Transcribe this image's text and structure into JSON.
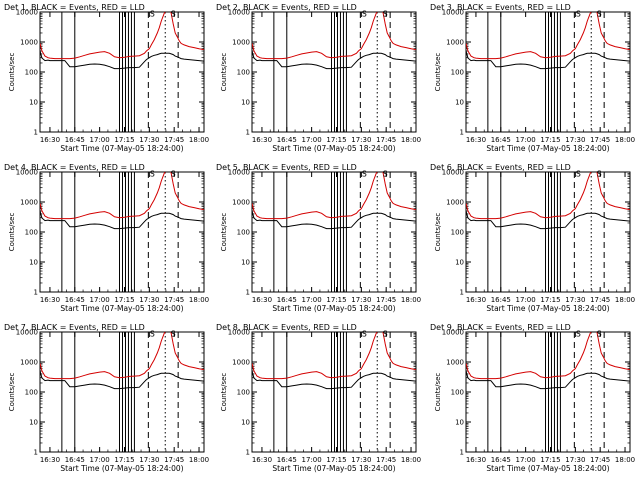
{
  "page": {
    "start_time_label": "Start Time (07-May-05 18:24:00)",
    "ylabel": "Counts/sec"
  },
  "colors": {
    "background": "#ffffff",
    "events": "#000000",
    "lld": "#d40000",
    "axes": "#000000"
  },
  "chart_data": [
    {
      "type": "line",
      "title": "Det 1, BLACK = Events, RED = LLD",
      "detector": 1
    },
    {
      "type": "line",
      "title": "Det 2, BLACK = Events, RED = LLD",
      "detector": 2
    },
    {
      "type": "line",
      "title": "Det 3, BLACK = Events, RED = LLD",
      "detector": 3
    },
    {
      "type": "line",
      "title": "Det 4, BLACK = Events, RED = LLD",
      "detector": 4
    },
    {
      "type": "line",
      "title": "Det 5, BLACK = Events, RED = LLD",
      "detector": 5
    },
    {
      "type": "line",
      "title": "Det 6, BLACK = Events, RED = LLD",
      "detector": 6
    },
    {
      "type": "line",
      "title": "Det 7, BLACK = Events, RED = LLD",
      "detector": 7
    },
    {
      "type": "line",
      "title": "Det 8, BLACK = Events, RED = LLD",
      "detector": 8
    },
    {
      "type": "line",
      "title": "Det 9, BLACK = Events, RED = LLD",
      "detector": 9
    }
  ],
  "shared": {
    "xlabel": "Start Time (07-May-05 18:24:00)",
    "ylabel": "Counts/sec",
    "xlim": [
      16.4,
      18.05
    ],
    "ylim": [
      1,
      10000
    ],
    "yscale": "log",
    "x_ticks": [
      16.5,
      16.75,
      17.0,
      17.25,
      17.5,
      17.75,
      18.0
    ],
    "x_tick_labels": [
      "16:30",
      "16:45",
      "17:00",
      "17:15",
      "17:30",
      "17:45",
      "18:00"
    ],
    "y_ticks": [
      1,
      10,
      100,
      1000,
      10000
    ],
    "y_tick_labels": [
      "1",
      "10",
      "100",
      "1000",
      "10000"
    ],
    "solid_markers": [
      16.62,
      16.75,
      17.2,
      17.23,
      17.26,
      17.29,
      17.32,
      17.35
    ],
    "dashed_markers": [
      17.49,
      17.79
    ],
    "dotted_markers": [
      17.66
    ],
    "annotations": [
      {
        "text": "S",
        "x": 17.53,
        "y": 9000
      },
      {
        "text": "S",
        "x": 17.74,
        "y": 9000
      }
    ],
    "series": [
      {
        "name": "LLD",
        "color": "red",
        "x": [
          16.4,
          16.42,
          16.45,
          16.48,
          16.5,
          16.55,
          16.6,
          16.65,
          16.7,
          16.75,
          16.8,
          16.85,
          16.9,
          16.95,
          17.0,
          17.05,
          17.1,
          17.15,
          17.2,
          17.25,
          17.3,
          17.35,
          17.4,
          17.45,
          17.47,
          17.5,
          17.52,
          17.55,
          17.58,
          17.6,
          17.62,
          17.65,
          17.68,
          17.7,
          17.72,
          17.74,
          17.76,
          17.78,
          17.8,
          17.82,
          17.85,
          17.9,
          17.95,
          18.0,
          18.05
        ],
        "values": [
          900,
          500,
          340,
          300,
          290,
          280,
          280,
          280,
          280,
          290,
          320,
          360,
          400,
          430,
          460,
          480,
          420,
          320,
          300,
          310,
          330,
          340,
          350,
          420,
          500,
          600,
          800,
          1200,
          2000,
          3000,
          5000,
          9000,
          13000,
          15000,
          9000,
          4000,
          2000,
          1500,
          1100,
          900,
          800,
          700,
          650,
          600,
          560
        ]
      },
      {
        "name": "Events",
        "color": "black",
        "x": [
          16.4,
          16.42,
          16.45,
          16.48,
          16.5,
          16.55,
          16.6,
          16.65,
          16.7,
          16.75,
          16.8,
          16.85,
          16.9,
          16.95,
          17.0,
          17.05,
          17.1,
          17.15,
          17.2,
          17.25,
          17.3,
          17.35,
          17.4,
          17.45,
          17.47,
          17.5,
          17.52,
          17.55,
          17.58,
          17.6,
          17.62,
          17.65,
          17.68,
          17.7,
          17.72,
          17.74,
          17.76,
          17.78,
          17.8,
          17.82,
          17.85,
          17.9,
          17.95,
          18.0,
          18.05
        ],
        "values": [
          500,
          290,
          240,
          250,
          240,
          240,
          240,
          240,
          150,
          150,
          160,
          170,
          180,
          185,
          180,
          170,
          150,
          130,
          130,
          135,
          140,
          140,
          145,
          220,
          260,
          300,
          330,
          360,
          380,
          400,
          420,
          420,
          420,
          420,
          400,
          380,
          340,
          320,
          300,
          280,
          270,
          260,
          250,
          240,
          230
        ]
      }
    ]
  }
}
